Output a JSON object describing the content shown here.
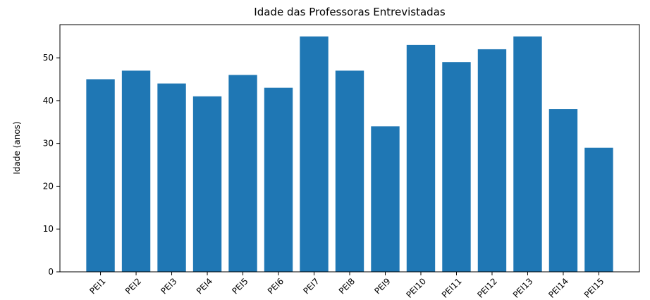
{
  "chart_data": {
    "type": "bar",
    "title": "Idade das Professoras Entrevistadas",
    "ylabel": "Idade (anos)",
    "categories": [
      "PEI1",
      "PEI2",
      "PEI3",
      "PEI4",
      "PEI5",
      "PEI6",
      "PEI7",
      "PEI8",
      "PEI9",
      "PEI10",
      "PEI11",
      "PEI12",
      "PEI13",
      "PEI14",
      "PEI15"
    ],
    "values": [
      45,
      47,
      44,
      41,
      46,
      43,
      55,
      47,
      34,
      53,
      49,
      52,
      55,
      38,
      29
    ],
    "color": "#1f77b4",
    "ylim": [
      0,
      57.75
    ],
    "yticks": [
      0,
      10,
      20,
      30,
      40,
      50
    ],
    "grid": false
  }
}
